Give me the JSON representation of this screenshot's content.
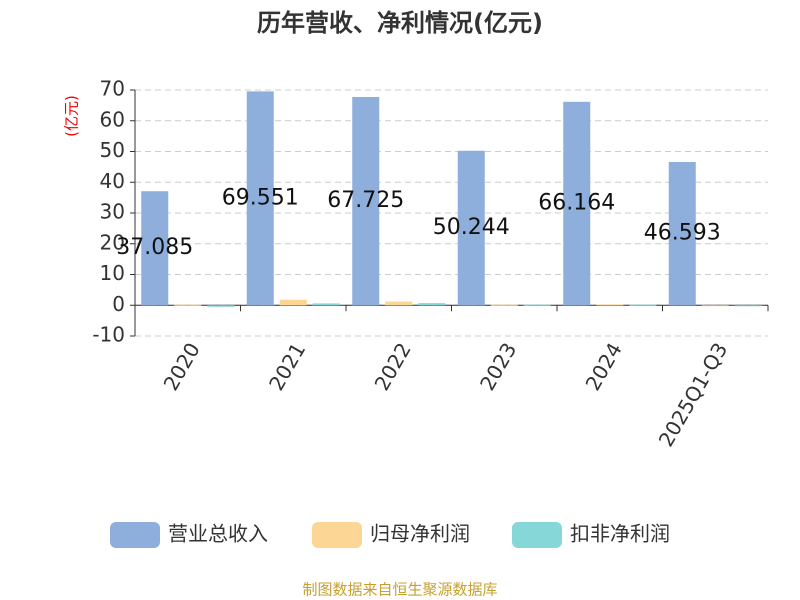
{
  "chart_data": {
    "type": "bar",
    "title": "历年营收、净利情况(亿元)",
    "y_label": "(亿元)",
    "categories": [
      "2020",
      "2021",
      "2022",
      "2023",
      "2024",
      "2025Q1-Q3"
    ],
    "series": [
      {
        "name": "营业总收入",
        "color": "#8eaedc",
        "values": [
          37.085,
          69.551,
          67.725,
          50.244,
          66.164,
          46.593
        ],
        "show_labels": true
      },
      {
        "name": "归母净利润",
        "color": "#fcd694",
        "values": [
          0.2,
          1.8,
          1.2,
          0.2,
          0.3,
          -0.2
        ]
      },
      {
        "name": "扣非净利润",
        "color": "#86d7d8",
        "values": [
          -0.5,
          0.6,
          0.7,
          0.2,
          0.2,
          -0.2
        ]
      }
    ],
    "ylim": [
      -10,
      70
    ],
    "yticks": [
      -10,
      0,
      10,
      20,
      30,
      40,
      50,
      60,
      70
    ],
    "grid": true,
    "source": "制图数据来自恒生聚源数据库"
  }
}
